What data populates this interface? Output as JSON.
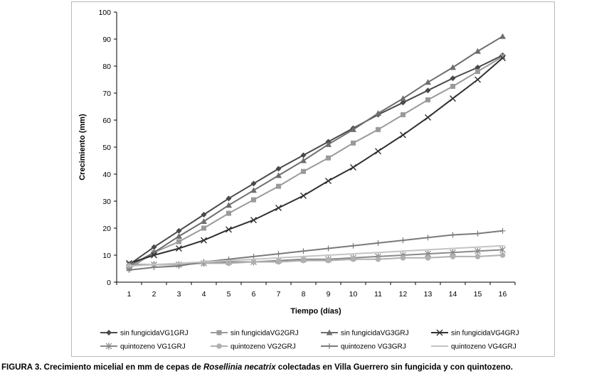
{
  "chart_data": {
    "type": "line",
    "xlabel": "Tiempo (días)",
    "ylabel": "Crecimiento (mm)",
    "x": [
      1,
      2,
      3,
      4,
      5,
      6,
      7,
      8,
      9,
      10,
      11,
      12,
      13,
      14,
      15,
      16
    ],
    "ylim": [
      0,
      100
    ],
    "yticks": [
      0,
      10,
      20,
      30,
      40,
      50,
      60,
      70,
      80,
      90,
      100
    ],
    "grid": false,
    "legend_position": "bottom",
    "series": [
      {
        "name": "sin fungicidaVG1GRJ",
        "color": "#4a4a4a",
        "marker": "diamond",
        "values": [
          6.5,
          13,
          19,
          25,
          31,
          36.5,
          42,
          47,
          52,
          57,
          62,
          66.5,
          71,
          75.5,
          79.5,
          84
        ]
      },
      {
        "name": "sin fungicidaVG2GRJ",
        "color": "#9a9a9a",
        "marker": "square",
        "values": [
          5,
          11,
          15,
          20,
          25.5,
          30.5,
          35.5,
          41,
          46,
          51.5,
          56.5,
          62,
          67.5,
          72.5,
          78,
          83.5
        ]
      },
      {
        "name": "sin fungicidaVG3GRJ",
        "color": "#6e6e6e",
        "marker": "triangle",
        "values": [
          6,
          11,
          17,
          22.5,
          28.5,
          34,
          39.5,
          45,
          51,
          56.5,
          62.5,
          68,
          74,
          79.5,
          85.5,
          91
        ]
      },
      {
        "name": "sin fungicidaVG4GRJ",
        "color": "#303030",
        "marker": "x",
        "values": [
          7,
          10,
          12.5,
          15.5,
          19.5,
          23,
          27.5,
          32,
          37.5,
          42.5,
          48.5,
          54.5,
          61,
          68,
          75,
          83
        ]
      },
      {
        "name": "quintozeno VG1GRJ",
        "color": "#8a8a8a",
        "marker": "star",
        "values": [
          6.5,
          6.5,
          6.5,
          7,
          7.5,
          7.5,
          8,
          8.5,
          8.5,
          9,
          9.5,
          10,
          10.5,
          11,
          11.5,
          12
        ]
      },
      {
        "name": "quintozeno VG2GRJ",
        "color": "#b0b0b0",
        "marker": "circle",
        "values": [
          6,
          6.5,
          6.5,
          7,
          7,
          7.5,
          7.5,
          8,
          8,
          8.5,
          8.5,
          9,
          9,
          9.5,
          9.5,
          10
        ]
      },
      {
        "name": "quintozeno VG3GRJ",
        "color": "#7a7a7a",
        "marker": "plus",
        "values": [
          4.5,
          5.5,
          6,
          7.5,
          8.5,
          9.5,
          10.5,
          11.5,
          12.5,
          13.5,
          14.5,
          15.5,
          16.5,
          17.5,
          18,
          19
        ]
      },
      {
        "name": "quintozeno VG4GRJ",
        "color": "#c4c4c4",
        "marker": "dash",
        "values": [
          6,
          6.5,
          7,
          7.5,
          8,
          8.5,
          9,
          9.5,
          10,
          10.5,
          11,
          11.5,
          12,
          12.5,
          13,
          13.5
        ]
      }
    ]
  },
  "caption": {
    "prefix": "FIGURA 3. Crecimiento micelial en mm de cepas de ",
    "species": "Rosellinia necatrix",
    "suffix": " colectadas en Villa Guerrero sin fungicida y con quintozeno."
  }
}
